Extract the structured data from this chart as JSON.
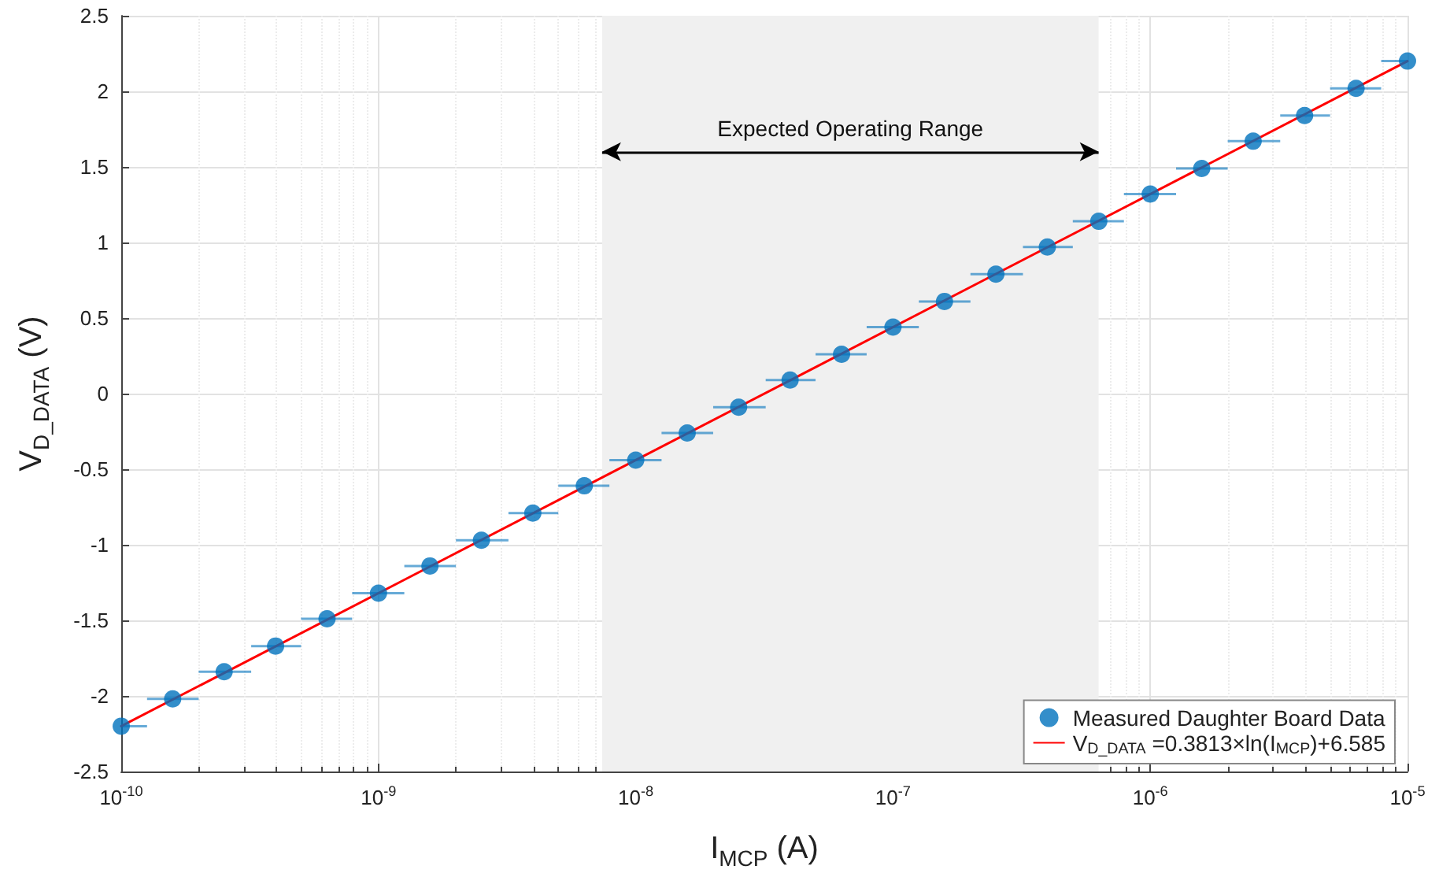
{
  "chart_data": {
    "type": "scatter",
    "xlabel": "I$_{MCP}$ (A)",
    "ylabel": "V$_{D_DATA}$ (V)",
    "log": "x",
    "xlim": [
      1e-10,
      1e-05
    ],
    "xticks": [
      {
        "value": 1e-10,
        "label": "10$^{-10}$"
      },
      {
        "value": 1e-09,
        "label": "10$^{-9}$"
      },
      {
        "value": 1e-08,
        "label": "10$^{-8}$"
      },
      {
        "value": 1e-07,
        "label": "10$^{-7}$"
      },
      {
        "value": 1e-06,
        "label": "10$^{-6}$"
      },
      {
        "value": 1e-05,
        "label": "10$^{-5}$"
      }
    ],
    "ylim": [
      -2.5,
      2.5
    ],
    "yticks": [
      -2.5,
      -2,
      -1.5,
      -1,
      -0.5,
      0,
      0.5,
      1,
      1.5,
      2,
      2.5
    ],
    "grid": true,
    "legend": "bottom right",
    "marker": "circle",
    "series": [
      {
        "name": "Measured Daughter Board Data",
        "color": "#0072bd",
        "x": [
          1e-10,
          1.585e-10,
          2.512e-10,
          3.981e-10,
          6.31e-10,
          1e-09,
          1.585e-09,
          2.512e-09,
          3.981e-09,
          6.31e-09,
          1e-08,
          1.585e-08,
          2.512e-08,
          3.981e-08,
          6.31e-08,
          1e-07,
          1.585e-07,
          2.512e-07,
          3.981e-07,
          6.31e-07,
          1e-06,
          1.585e-06,
          2.512e-06,
          3.981e-06,
          6.31e-06,
          1e-05
        ],
        "values": [
          -2.2,
          -2.02,
          -1.84,
          -1.67,
          -1.49,
          -1.32,
          -1.14,
          -0.97,
          -0.79,
          -0.61,
          -0.44,
          -0.26,
          -0.09,
          0.09,
          0.26,
          0.44,
          0.61,
          0.79,
          0.97,
          1.14,
          1.32,
          1.49,
          1.67,
          1.84,
          2.02,
          2.2
        ],
        "xerrors": [
          [
            1e-10,
            1.26e-10
          ],
          [
            1.26e-10,
            2e-10
          ],
          [
            2e-10,
            3.2e-10
          ],
          [
            3.2e-10,
            5e-10
          ],
          [
            5e-10,
            7.9e-10
          ],
          [
            7.9e-10,
            1.26e-09
          ],
          [
            1.26e-09,
            2e-09
          ],
          [
            2e-09,
            3.2e-09
          ],
          [
            3.2e-09,
            5e-09
          ],
          [
            5e-09,
            7.9e-09
          ],
          [
            7.9e-09,
            1.26e-08
          ],
          [
            1.26e-08,
            2e-08
          ],
          [
            2e-08,
            3.2e-08
          ],
          [
            3.2e-08,
            5e-08
          ],
          [
            5e-08,
            7.9e-08
          ],
          [
            7.9e-08,
            1.26e-07
          ],
          [
            1.26e-07,
            2e-07
          ],
          [
            2e-07,
            3.2e-07
          ],
          [
            3.2e-07,
            5e-07
          ],
          [
            5e-07,
            7.9e-07
          ],
          [
            7.9e-07,
            1.26e-06
          ],
          [
            1.26e-06,
            2e-06
          ],
          [
            2e-06,
            3.2e-06
          ],
          [
            3.2e-06,
            5e-06
          ],
          [
            5e-06,
            7.9e-06
          ],
          [
            7.9e-06,
            1e-05
          ]
        ]
      },
      {
        "name": "V$_{D_DATA}$ =0.3813×ln(I$_{MCP}$)+6.585",
        "type": "line",
        "color": "#ff0000",
        "marker": "none",
        "x": [
          1e-10,
          1e-05
        ],
        "values": [
          -2.2,
          2.2
        ]
      }
    ],
    "bands": [
      {
        "axis": "x",
        "from": 7.4e-09,
        "to": 6.3e-07,
        "label": "Expected Operating Range",
        "color": "#f0f0f0"
      }
    ]
  }
}
